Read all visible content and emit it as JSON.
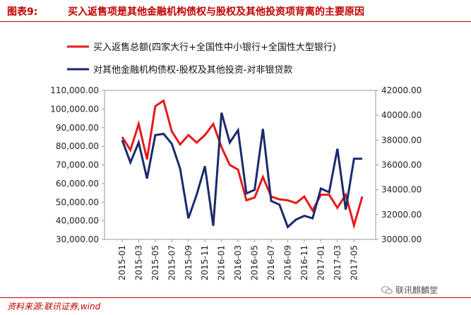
{
  "header": {
    "figure_label": "图表9:",
    "figure_title": "买入返售项是其他金融机构债权与股权及其他投资项背离的主要原因"
  },
  "footer": {
    "source": "资料来源:联讯证券,wind",
    "watermark": "联讯麒麟堂"
  },
  "colors": {
    "accent": "#c00000",
    "series_left": "#e31a1c",
    "series_right": "#1a2a6c"
  },
  "chart_data": {
    "type": "line",
    "x": [
      "2015-01",
      "2015-02",
      "2015-03",
      "2015-04",
      "2015-05",
      "2015-06",
      "2015-07",
      "2015-08",
      "2015-09",
      "2015-10",
      "2015-11",
      "2015-12",
      "2016-01",
      "2016-02",
      "2016-03",
      "2016-04",
      "2016-05",
      "2016-06",
      "2016-07",
      "2016-08",
      "2016-09",
      "2016-10",
      "2016-11",
      "2016-12",
      "2017-01",
      "2017-02",
      "2017-03",
      "2017-04",
      "2017-05",
      "2017-06"
    ],
    "x_tick_labels": [
      "2015-01",
      "2015-03",
      "2015-05",
      "2015-07",
      "2015-09",
      "2015-11",
      "2016-01",
      "2016-03",
      "2016-05",
      "2016-07",
      "2016-09",
      "2016-11",
      "2017-01",
      "2017-03",
      "2017-05"
    ],
    "series": [
      {
        "name": "买入返售总额(四家大行+全国性中小银行+全国性大型银行)",
        "axis": "left",
        "values": [
          85000,
          78000,
          92000,
          73000,
          101500,
          104500,
          88000,
          81000,
          86000,
          82000,
          86000,
          92000,
          79500,
          70000,
          67500,
          51000,
          52500,
          63500,
          53000,
          51500,
          51000,
          49500,
          53000,
          45500,
          54000,
          54000,
          47000,
          54000,
          37500,
          53000
        ]
      },
      {
        "name": "对其他金融机构债权-股权及其他投资-对非银贷款",
        "axis": "right",
        "values": [
          38000,
          36200,
          37800,
          34900,
          38400,
          38500,
          37700,
          35700,
          31700,
          33600,
          35900,
          31100,
          40200,
          37800,
          38800,
          33700,
          34000,
          38900,
          33100,
          32800,
          31000,
          31600,
          31900,
          31700,
          34100,
          33800,
          37300,
          32400,
          36500,
          36500
        ]
      }
    ],
    "y_left": {
      "range": [
        30000,
        110000
      ],
      "ticks": [
        "30,000.00",
        "40,000.00",
        "50,000.00",
        "60,000.00",
        "70,000.00",
        "80,000.00",
        "90,000.00",
        "100,000.00",
        "110,000.00"
      ]
    },
    "y_right": {
      "range": [
        30000,
        42000
      ],
      "ticks": [
        "30000.00",
        "32000.00",
        "34000.00",
        "36000.00",
        "38000.00",
        "40000.00",
        "42000.00"
      ]
    },
    "legend_position": "top-left",
    "grid": false
  }
}
